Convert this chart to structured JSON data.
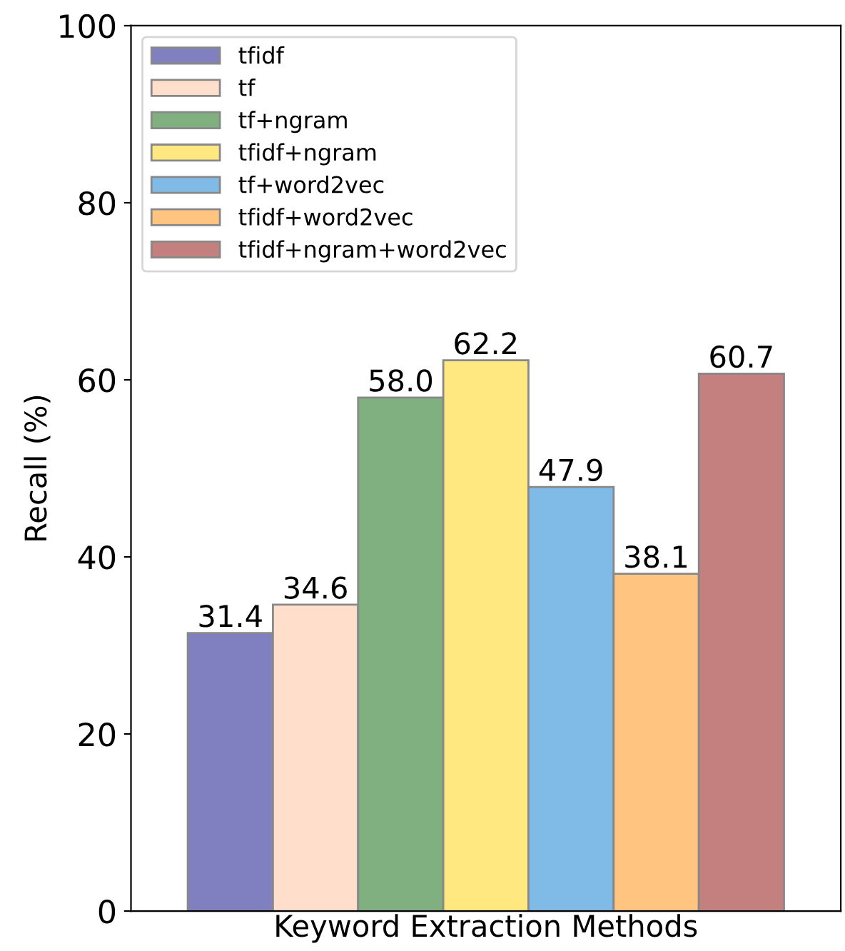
{
  "chart_data": {
    "type": "bar",
    "xlabel": "Keyword Extraction Methods",
    "ylabel": "Recall (%)",
    "categories": [
      null
    ],
    "series": [
      {
        "name": "tfidf",
        "color": "#8080c0",
        "values": [
          31.4
        ],
        "value_labels": [
          "31.4"
        ]
      },
      {
        "name": "tf",
        "color": "#ffdfcb",
        "values": [
          34.6
        ],
        "value_labels": [
          "34.6"
        ]
      },
      {
        "name": "tf+ngram",
        "color": "#80b080",
        "values": [
          58.0
        ],
        "value_labels": [
          "58.0"
        ]
      },
      {
        "name": "tfidf+ngram",
        "color": "#ffe880",
        "values": [
          62.2
        ],
        "value_labels": [
          "62.2"
        ]
      },
      {
        "name": "tf+word2vec",
        "color": "#80bae6",
        "values": [
          47.9
        ],
        "value_labels": [
          "47.9"
        ]
      },
      {
        "name": "tfidf+word2vec",
        "color": "#ffc480",
        "values": [
          38.1
        ],
        "value_labels": [
          "38.1"
        ]
      },
      {
        "name": "tfidf+ngram+word2vec",
        "color": "#c47f7f",
        "values": [
          60.7
        ],
        "value_labels": [
          "60.7"
        ]
      }
    ],
    "ylim": [
      0,
      100
    ],
    "yticks": [
      0,
      20,
      40,
      60,
      80,
      100
    ],
    "grid": false,
    "legend": "top left"
  }
}
